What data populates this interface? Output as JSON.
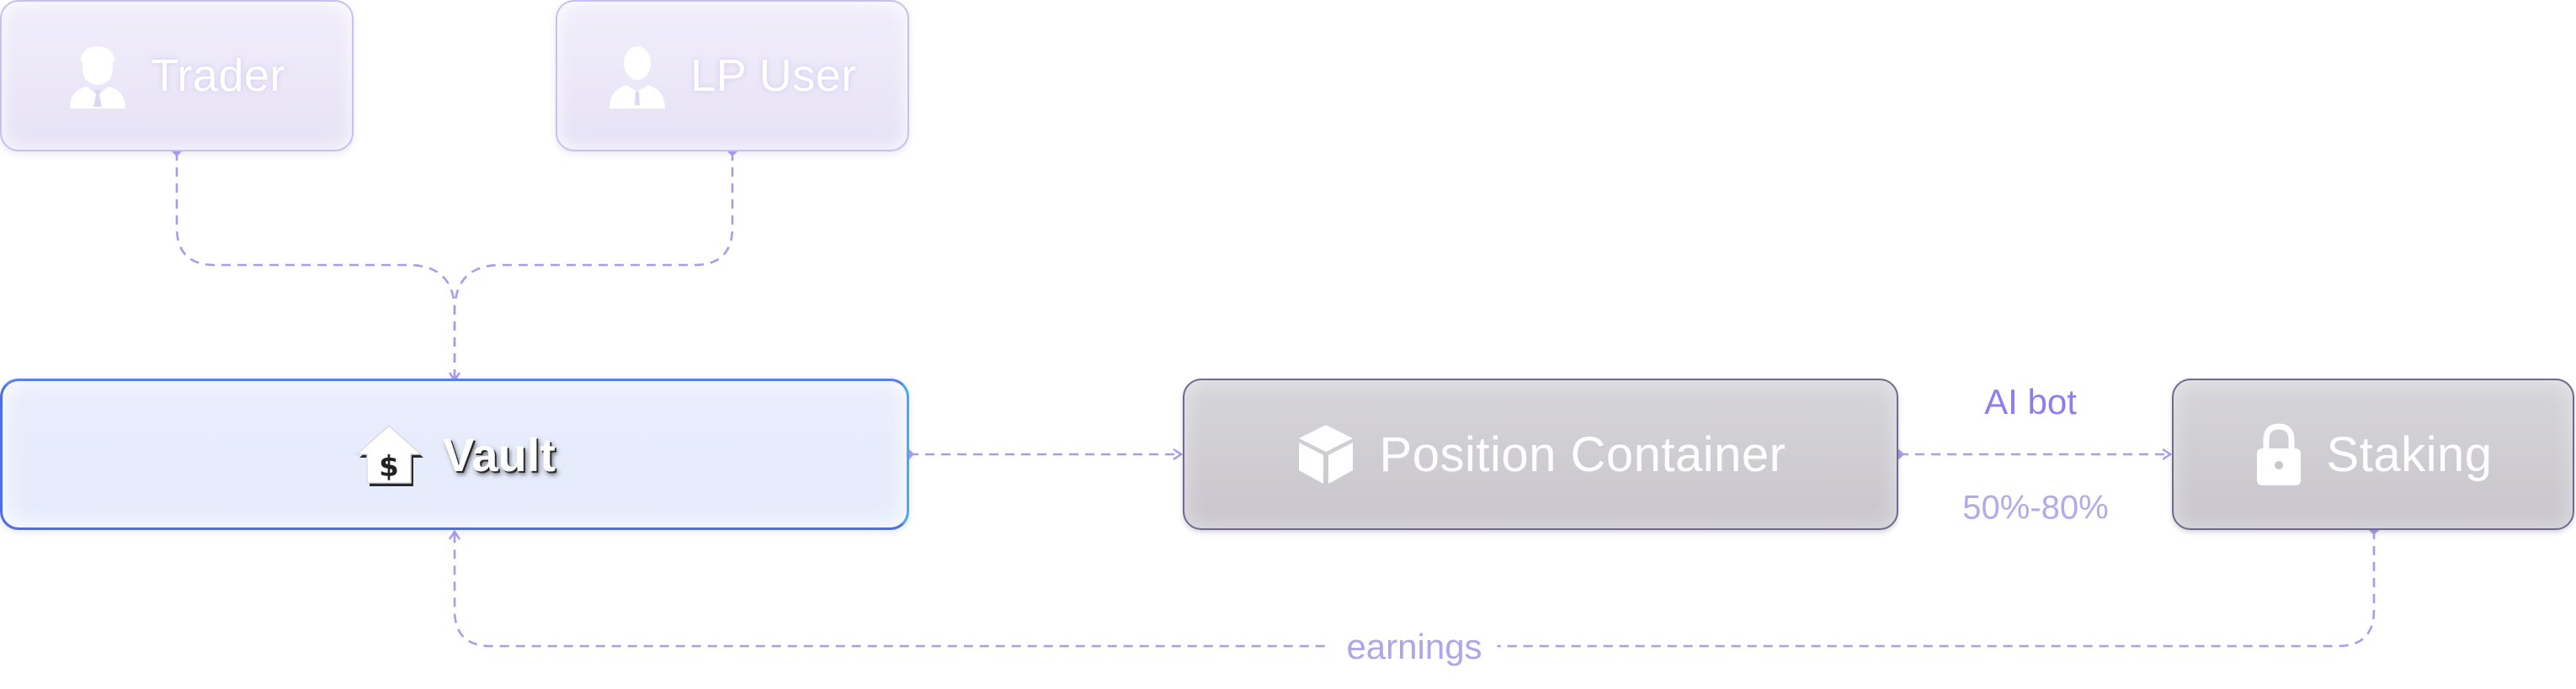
{
  "diagram": {
    "nodes": {
      "trader": {
        "label": "Trader",
        "icon": "trader-person-icon"
      },
      "lp_user": {
        "label": "LP User",
        "icon": "lp-user-person-icon"
      },
      "vault": {
        "label": "Vault",
        "icon": "house-dollar-icon"
      },
      "position_container": {
        "label": "Position Container",
        "icon": "cube-icon"
      },
      "staking": {
        "label": "Staking",
        "icon": "padlock-icon"
      }
    },
    "edges": {
      "container_to_staking": {
        "label_top": "AI bot",
        "label_bottom": "50%-80%"
      },
      "staking_to_vault": {
        "label": "earnings"
      }
    },
    "colors": {
      "connector": "#a99cf0",
      "user_node_border": "#c8c0f0",
      "vault_border": "#4f6ee6",
      "grey_node_border": "#6f6a8e",
      "ai_bot_text": "#8d7ef0"
    }
  }
}
